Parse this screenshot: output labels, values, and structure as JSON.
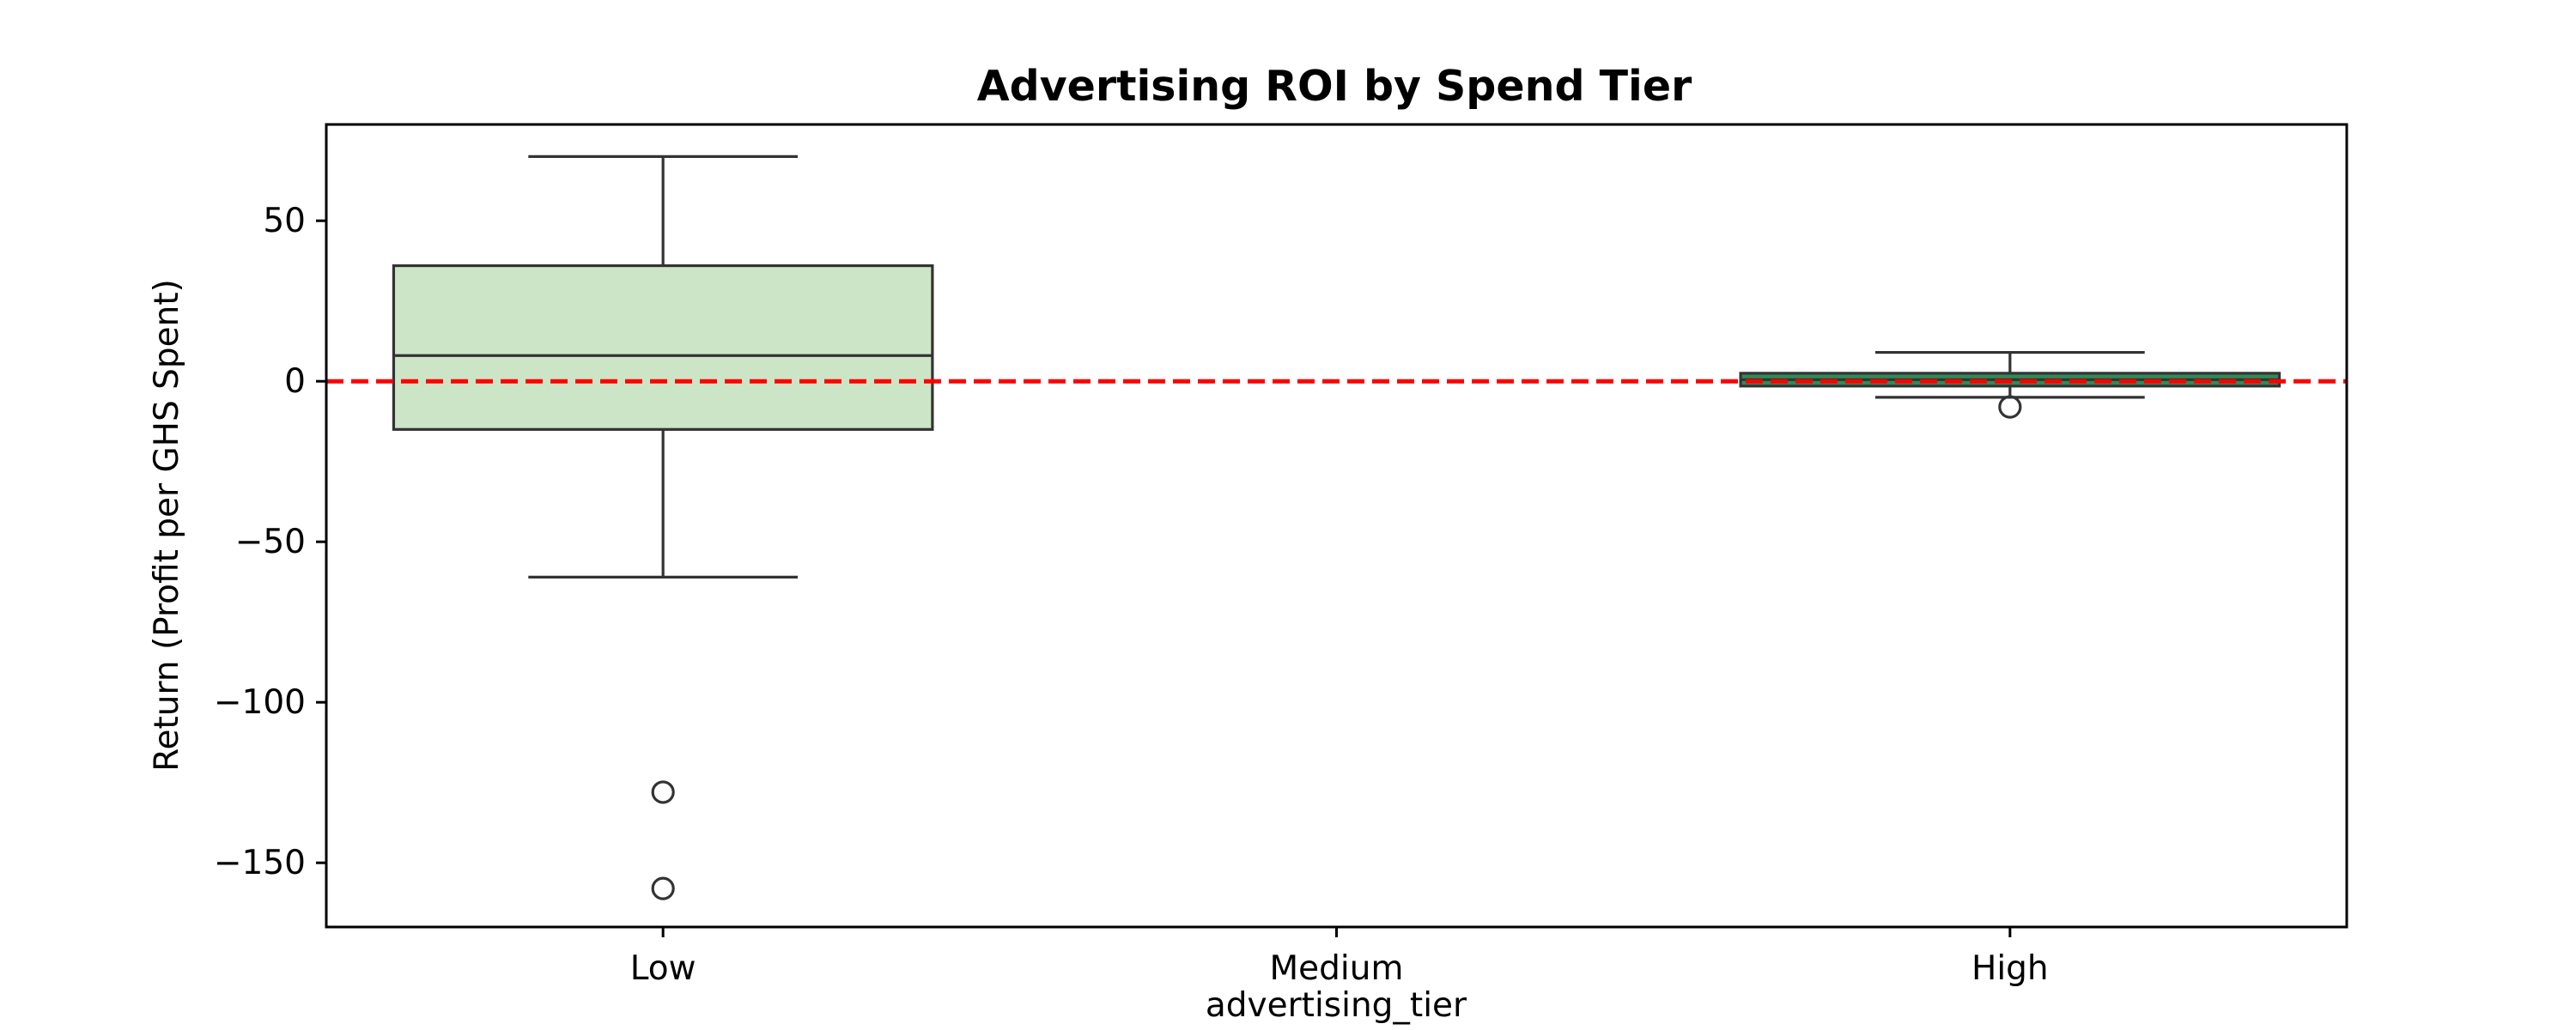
{
  "chart_data": {
    "type": "box",
    "title": "Advertising ROI by Spend Tier",
    "xlabel": "advertising_tier",
    "ylabel": "Return (Profit per GHS Spent)",
    "categories": [
      "Low",
      "Medium",
      "High"
    ],
    "ylim": [
      -170,
      80
    ],
    "yticks": [
      {
        "value": 50,
        "label": "50"
      },
      {
        "value": 0,
        "label": "0"
      },
      {
        "value": -50,
        "label": "−50"
      },
      {
        "value": -100,
        "label": "−100"
      },
      {
        "value": -150,
        "label": "−150"
      }
    ],
    "boxes": [
      {
        "category": "Low",
        "whisker_low": -61,
        "q1": -15,
        "median": 8,
        "q3": 36,
        "whisker_high": 70,
        "outliers": [
          -128,
          -158
        ]
      },
      {
        "category": "Medium",
        "empty": true
      },
      {
        "category": "High",
        "whisker_low": -5,
        "q1": -1.5,
        "median": 0.5,
        "q3": 2.5,
        "whisker_high": 9,
        "outliers": [
          -8
        ]
      }
    ],
    "reference_line": {
      "y": 0,
      "style": "dashed",
      "color": "#ff0000"
    },
    "colors": {
      "low_box": "#cce5c6",
      "high_box": "#2e8b57",
      "edge": "#333333",
      "axes": "#000000"
    },
    "grid": false,
    "legend": "none"
  }
}
